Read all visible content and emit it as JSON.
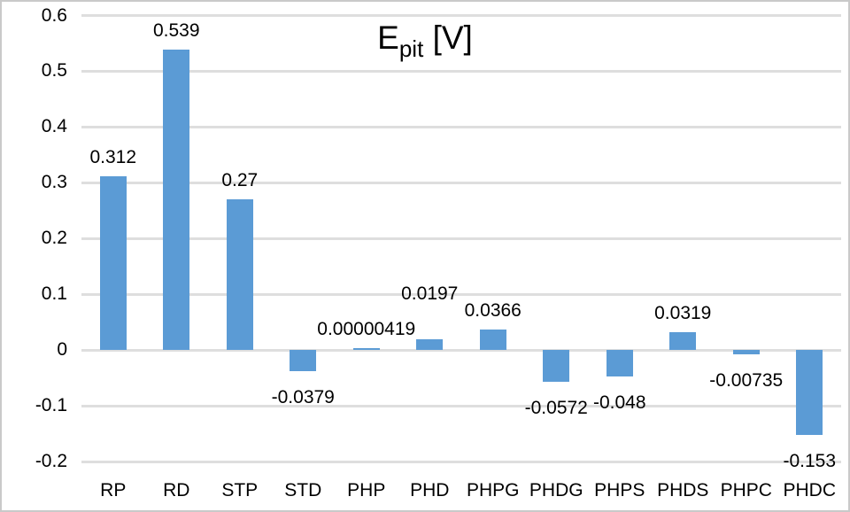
{
  "title_parts": {
    "base": "E",
    "subscript": "pit",
    "unit": " [V]"
  },
  "chart_data": {
    "type": "bar",
    "title": "E_pit [V]",
    "categories": [
      "RP",
      "RD",
      "STP",
      "STD",
      "PHP",
      "PHD",
      "PHPG",
      "PHDG",
      "PHPS",
      "PHDS",
      "PHPC",
      "PHDC"
    ],
    "values": [
      0.312,
      0.539,
      0.27,
      -0.0379,
      4.19e-06,
      0.0197,
      0.0366,
      -0.0572,
      -0.048,
      0.0319,
      -0.00735,
      -0.153
    ],
    "data_labels": [
      "0.312",
      "0.539",
      "0.27",
      "-0.0379",
      "0.00000419",
      "0.0197",
      "0.0366",
      "-0.0572",
      "-0.048",
      "0.0319",
      "-0.00735",
      "-0.153"
    ],
    "xlabel": "",
    "ylabel": "",
    "ylim": [
      -0.2,
      0.6
    ],
    "ytick_step": 0.1,
    "yticks": [
      "0.6",
      "0.5",
      "0.4",
      "0.3",
      "0.2",
      "0.1",
      "0",
      "-0.1",
      "-0.2"
    ],
    "grid": true,
    "legend": "none",
    "colors": {
      "bar": "#5B9BD5",
      "gridline": "#DEDEDE",
      "text": "#000000",
      "border": "#C9C9C9",
      "background": "#FFFFFF"
    }
  }
}
